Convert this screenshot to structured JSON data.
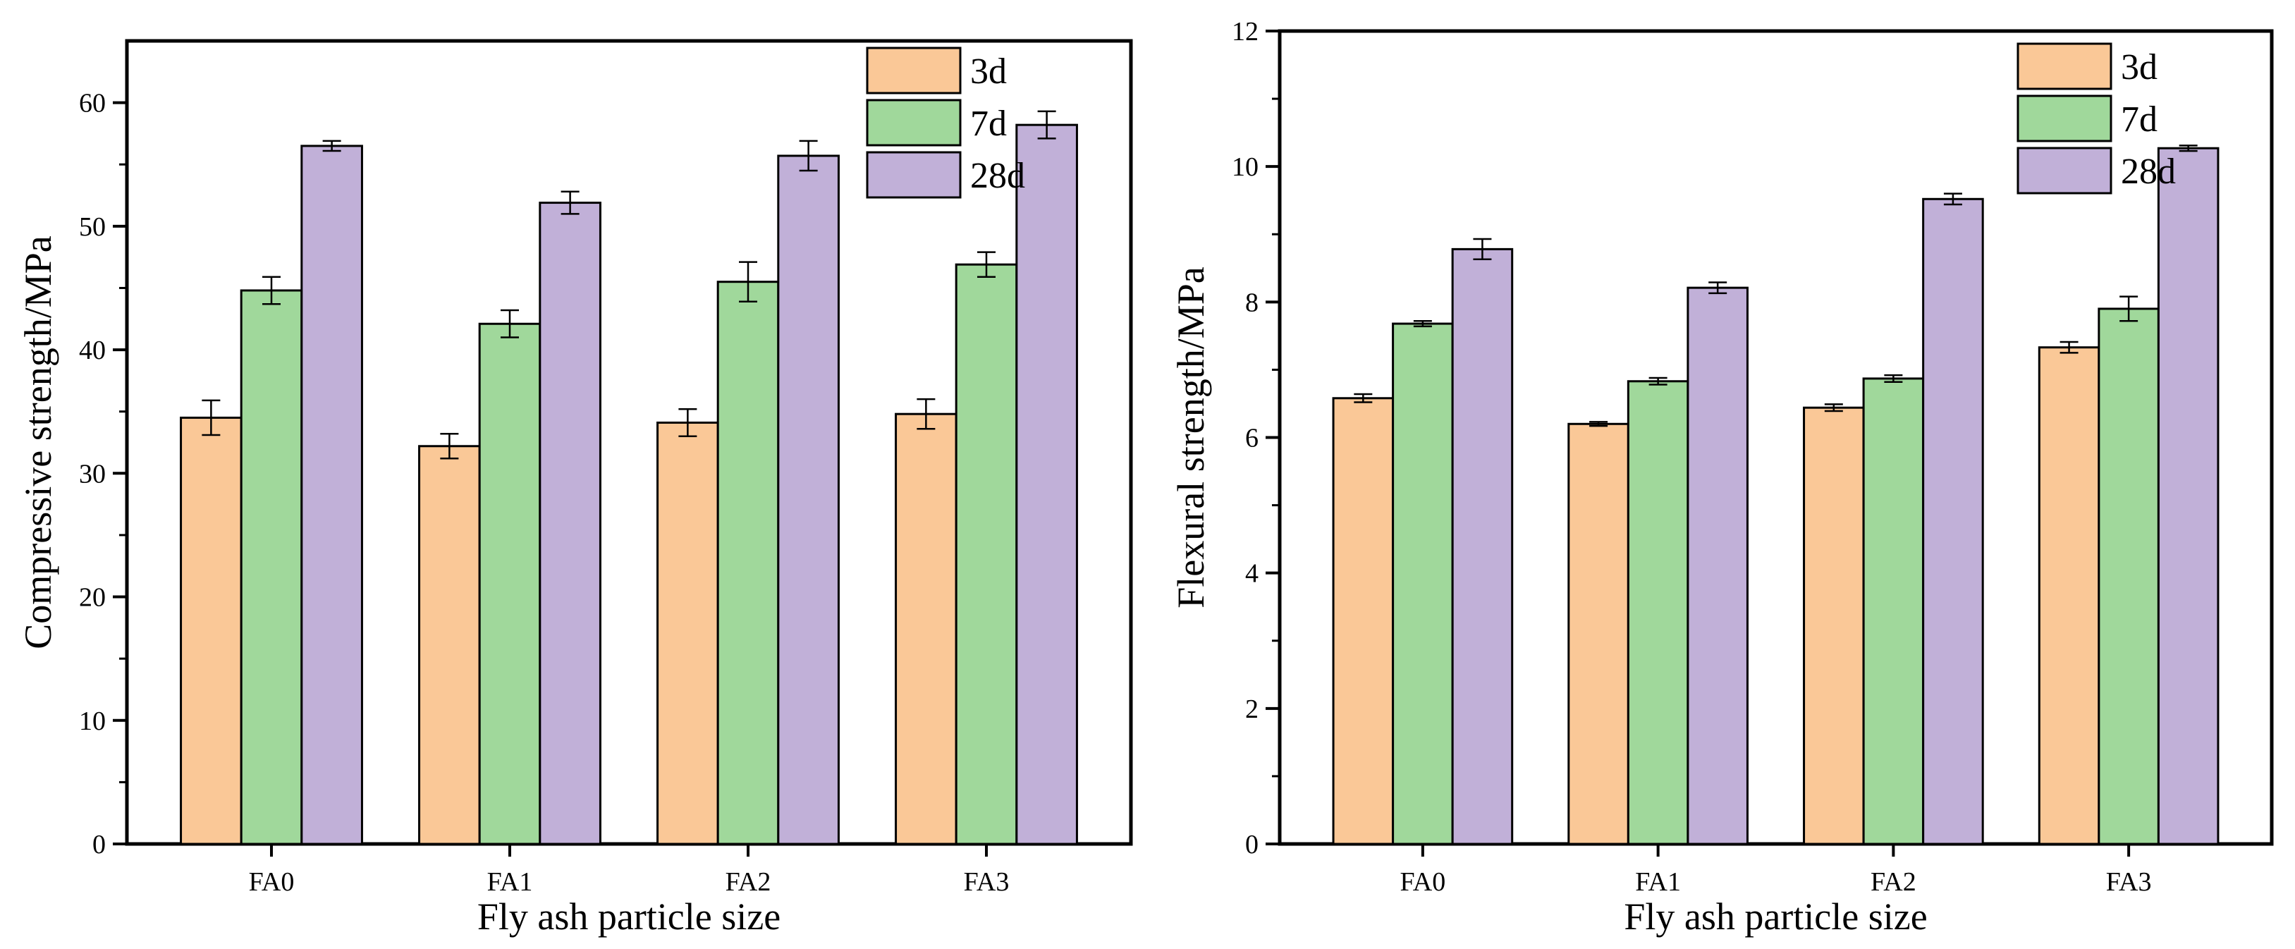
{
  "chart_data": [
    {
      "type": "bar",
      "title": "",
      "xlabel": "Fly ash particle size",
      "ylabel": "Compressive strength/MPa",
      "categories": [
        "FA0",
        "FA1",
        "FA2",
        "FA3"
      ],
      "ylim": [
        0,
        65
      ],
      "yticks": [
        0,
        10,
        20,
        30,
        40,
        50,
        60
      ],
      "yminor_step": 5,
      "legend_position": "top-right",
      "series": [
        {
          "name": "3d",
          "color": "#fac897",
          "values": [
            34.5,
            32.2,
            34.1,
            34.8
          ],
          "errors": [
            1.4,
            1.0,
            1.1,
            1.2
          ]
        },
        {
          "name": "7d",
          "color": "#a0d89b",
          "values": [
            44.8,
            42.1,
            45.5,
            46.9
          ],
          "errors": [
            1.1,
            1.1,
            1.6,
            1.0
          ]
        },
        {
          "name": "28d",
          "color": "#c1b0d8",
          "values": [
            56.5,
            51.9,
            55.7,
            58.2
          ],
          "errors": [
            0.4,
            0.9,
            1.2,
            1.1
          ]
        }
      ]
    },
    {
      "type": "bar",
      "title": "",
      "xlabel": "Fly ash particle size",
      "ylabel": "Flexural strength/MPa",
      "categories": [
        "FA0",
        "FA1",
        "FA2",
        "FA3"
      ],
      "ylim": [
        0,
        12
      ],
      "yticks": [
        0,
        2,
        4,
        6,
        8,
        10,
        12
      ],
      "yminor_step": 1,
      "legend_position": "top-right",
      "series": [
        {
          "name": "3d",
          "color": "#fac897",
          "values": [
            6.58,
            6.2,
            6.44,
            7.33
          ],
          "errors": [
            0.06,
            0.03,
            0.05,
            0.08
          ]
        },
        {
          "name": "7d",
          "color": "#a0d89b",
          "values": [
            7.68,
            6.83,
            6.87,
            7.9
          ],
          "errors": [
            0.04,
            0.05,
            0.05,
            0.18
          ]
        },
        {
          "name": "28d",
          "color": "#c1b0d8",
          "values": [
            8.78,
            8.21,
            9.52,
            10.27
          ],
          "errors": [
            0.15,
            0.08,
            0.08,
            0.04
          ]
        }
      ]
    }
  ]
}
